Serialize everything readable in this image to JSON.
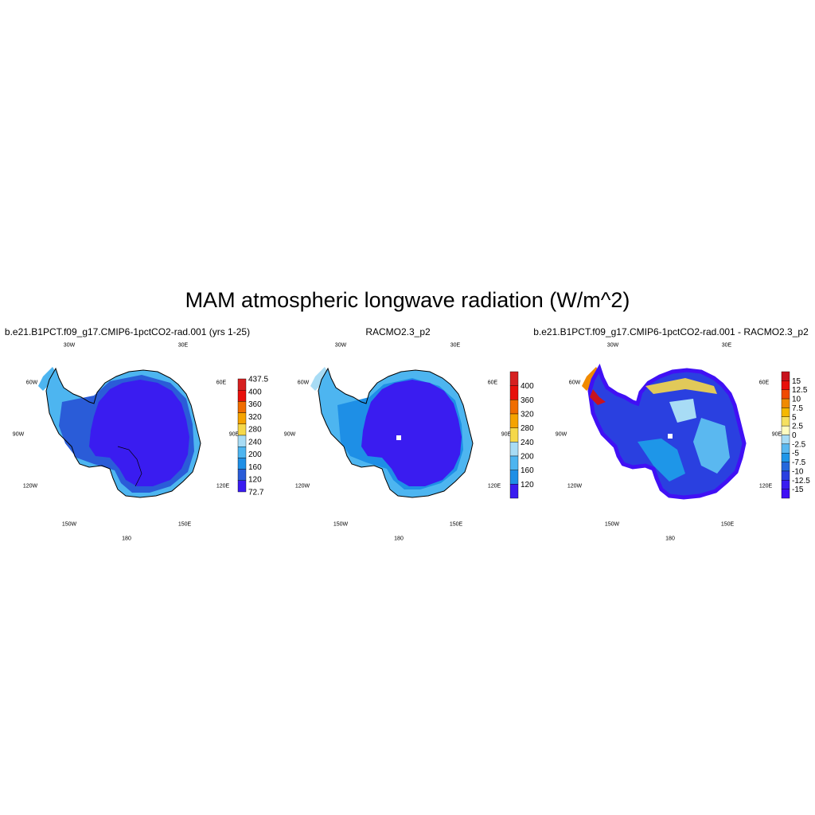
{
  "figure_title": "MAM atmospheric longwave radiation (W/m^2)",
  "panels": [
    {
      "title": "b.e21.B1PCT.f09_g17.CMIP6-1pctCO2-rad.001 (yrs 1-25)",
      "lon_labels": [
        "30W",
        "30E",
        "60W",
        "60E",
        "90W",
        "90E",
        "120W",
        "120E",
        "150W",
        "150E",
        "180"
      ],
      "colorbar": {
        "labels": [
          "437.5",
          "400",
          "360",
          "320",
          "280",
          "240",
          "200",
          "160",
          "120",
          "72.7"
        ],
        "colors": [
          "#d62020",
          "#e8100b",
          "#f06d00",
          "#f5a300",
          "#f5d84a",
          "#a8dcf5",
          "#4db5f0",
          "#1e8fe6",
          "#2a5cd8",
          "#3a1cf0"
        ]
      }
    },
    {
      "title": "RACMO2.3_p2",
      "lon_labels": [
        "30W",
        "30E",
        "60W",
        "60E",
        "90W",
        "90E",
        "120W",
        "120E",
        "150W",
        "150E",
        "180"
      ],
      "colorbar": {
        "labels": [
          "400",
          "360",
          "320",
          "280",
          "240",
          "200",
          "160",
          "120"
        ],
        "colors": [
          "#d62020",
          "#e8100b",
          "#f06d00",
          "#f5a300",
          "#f5d84a",
          "#a8dcf5",
          "#4db5f0",
          "#1e8fe6",
          "#3a1cf0"
        ]
      }
    },
    {
      "title": "b.e21.B1PCT.f09_g17.CMIP6-1pctCO2-rad.001 - RACMO2.3_p2",
      "lon_labels": [
        "30W",
        "30E",
        "60W",
        "60E",
        "90W",
        "90E",
        "120W",
        "120E",
        "150W",
        "150E",
        "180"
      ],
      "colorbar": {
        "labels": [
          "15",
          "12.5",
          "10",
          "7.5",
          "5",
          "2.5",
          "0",
          "-2.5",
          "-5",
          "-7.5",
          "-10",
          "-12.5",
          "-15"
        ],
        "colors": [
          "#c8141e",
          "#e8100b",
          "#f04a00",
          "#f08a00",
          "#f5b800",
          "#f5e060",
          "#fffcc0",
          "#a8dcf5",
          "#5ab8f0",
          "#1e96e8",
          "#2468dc",
          "#2a40e0",
          "#3a1cf0",
          "#4010f5"
        ]
      }
    }
  ]
}
